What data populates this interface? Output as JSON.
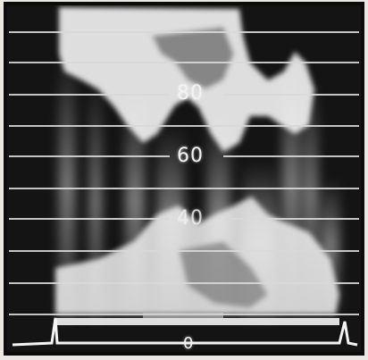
{
  "waveform_monitor": {
    "scale_labels": {
      "top": "80",
      "middle": "60",
      "lower": "40",
      "bottom": "0"
    },
    "colors": {
      "screen": "#141414",
      "trace": "#f4f4f4",
      "graticule": "#d9d9d9",
      "paper": "#ebe8e4"
    }
  }
}
